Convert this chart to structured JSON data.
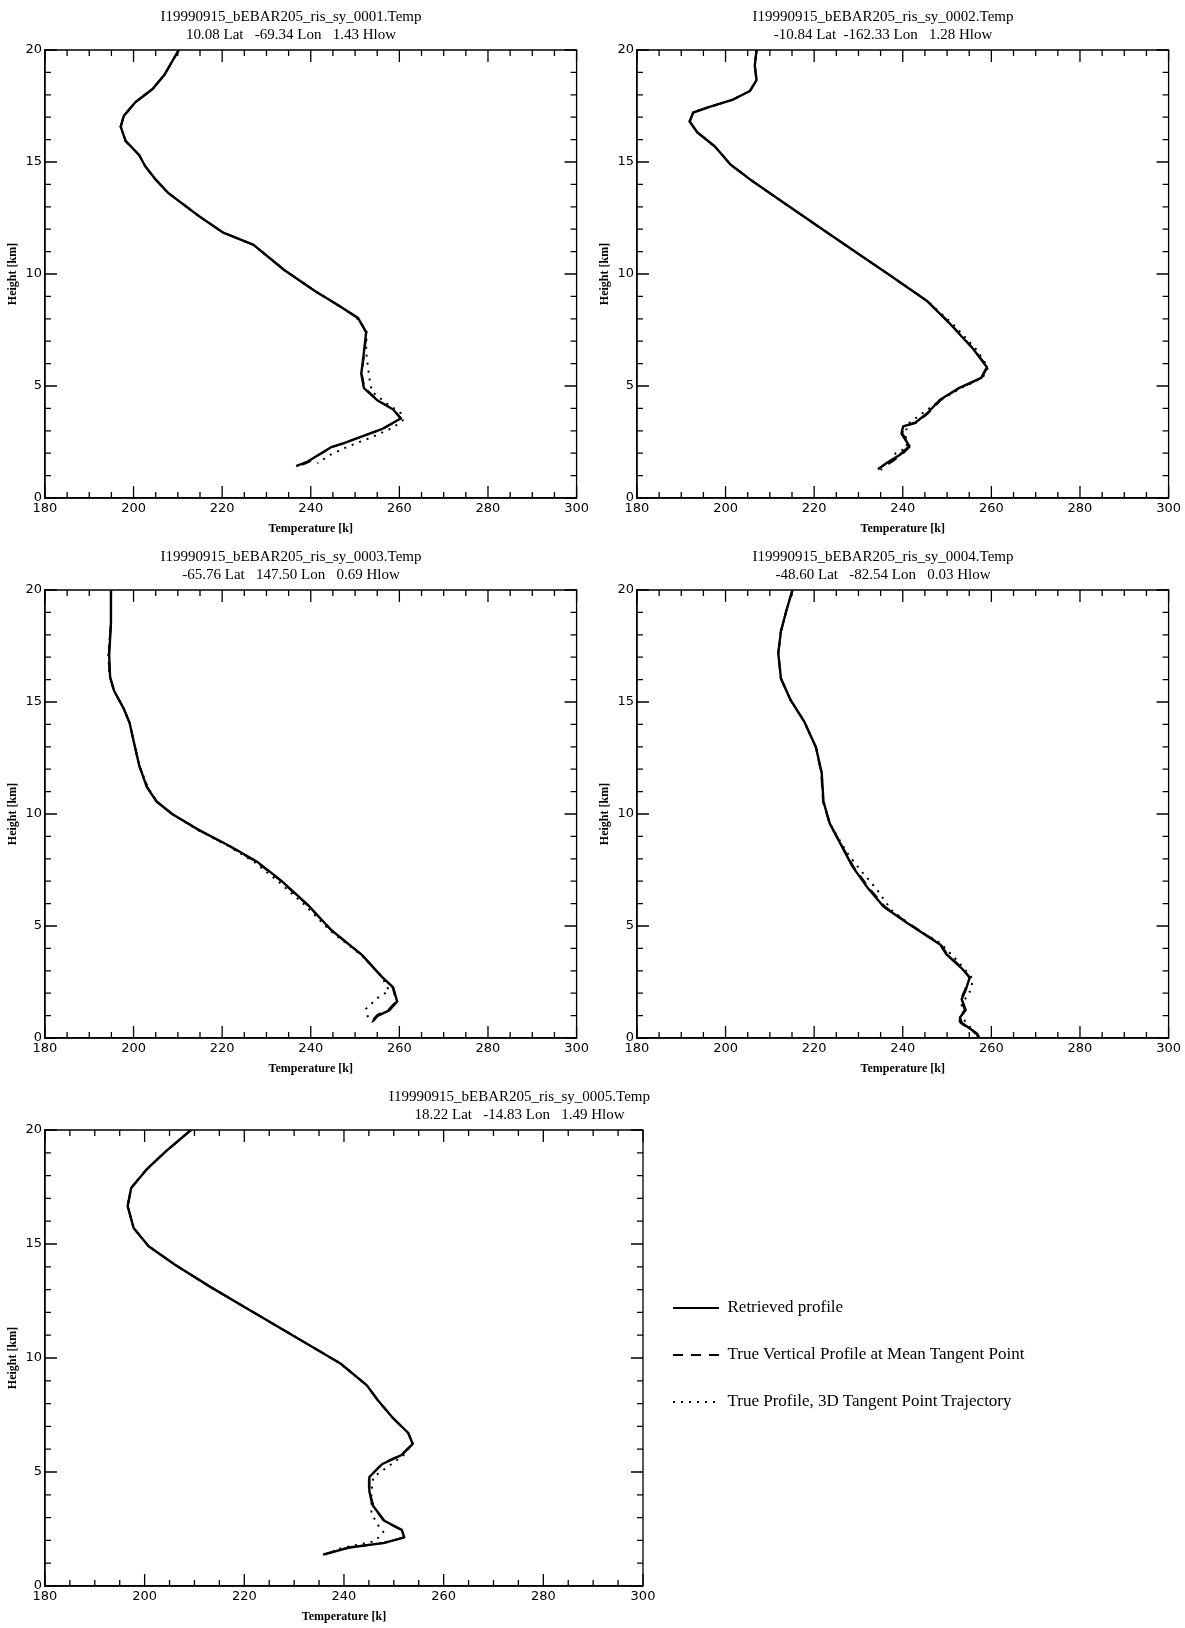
{
  "chart_data": [
    {
      "type": "line",
      "title": "I19990915_bEBAR205_ris_sy_0001.Temp",
      "subtitle": "10.08 Lat   -69.34 Lon   1.43 Hlow",
      "xlabel": "Temperature [k]",
      "ylabel": "Height [km]",
      "xlim": [
        180,
        300
      ],
      "ylim": [
        0,
        20
      ],
      "xticks": [
        180,
        {
          "value": 185,
          "label": null
        },
        {
          "value": 190,
          "label": null
        },
        {
          "value": 195,
          "label": null
        },
        200,
        {
          "value": 205,
          "label": null
        },
        {
          "value": 210,
          "label": null
        },
        {
          "value": 215,
          "label": null
        },
        220,
        {
          "value": 225,
          "label": null
        },
        {
          "value": 230,
          "label": null
        },
        {
          "value": 235,
          "label": null
        },
        240,
        {
          "value": 245,
          "label": null
        },
        {
          "value": 250,
          "label": null
        },
        {
          "value": 255,
          "label": null
        },
        260,
        {
          "value": 265,
          "label": null
        },
        {
          "value": 270,
          "label": null
        },
        {
          "value": 275,
          "label": null
        },
        280,
        {
          "value": 285,
          "label": null
        },
        {
          "value": 290,
          "label": null
        },
        {
          "value": 295,
          "label": null
        },
        300
      ],
      "yticks": [
        0,
        {
          "value": 1,
          "label": null
        },
        {
          "value": 2,
          "label": null
        },
        {
          "value": 3,
          "label": null
        },
        {
          "value": 4,
          "label": null
        },
        5,
        {
          "value": 6,
          "label": null
        },
        {
          "value": 7,
          "label": null
        },
        {
          "value": 8,
          "label": null
        },
        {
          "value": 9,
          "label": null
        },
        10,
        {
          "value": 11,
          "label": null
        },
        {
          "value": 12,
          "label": null
        },
        {
          "value": 13,
          "label": null
        },
        {
          "value": 14,
          "label": null
        },
        15,
        {
          "value": 16,
          "label": null
        },
        {
          "value": 17,
          "label": null
        },
        {
          "value": 18,
          "label": null
        },
        {
          "value": 19,
          "label": null
        },
        20
      ],
      "grid": false,
      "legend": false,
      "marker": "none",
      "series": [
        {
          "color": "#000000",
          "line_style": "solid",
          "x": [
            210.2,
            207.0,
            204.3,
            200.4,
            197.8,
            197.1,
            198.2,
            201.3,
            202.6,
            204.8,
            207.8,
            214.8,
            220.1,
            227.1,
            234.0,
            241.1,
            246.3,
            250.7,
            252.5,
            252.0,
            251.4,
            252.0,
            255.1,
            258.6,
            260.3,
            256.0,
            251.6,
            247.2,
            244.6,
            242.0,
            239.3,
            236.7
          ],
          "values": [
            20,
            18.9,
            18.26,
            17.67,
            17.06,
            16.58,
            15.94,
            15.3,
            14.82,
            14.26,
            13.62,
            12.58,
            11.86,
            11.3,
            10.18,
            9.22,
            8.59,
            8.03,
            7.39,
            6.51,
            5.55,
            4.91,
            4.35,
            3.95,
            3.55,
            3.07,
            2.75,
            2.43,
            2.27,
            1.95,
            1.63,
            1.42
          ]
        },
        {
          "color": "#000000",
          "line_style": "dashed",
          "x": [
            210.2,
            207.0,
            204.3,
            200.4,
            197.8,
            197.1,
            198.2,
            201.3,
            202.6,
            204.8,
            207.8,
            214.8,
            220.1,
            227.1,
            234.0,
            241.1,
            246.3,
            250.7,
            252.6,
            252.1,
            251.5,
            252.1,
            255.2,
            258.7,
            260.4,
            256.1,
            251.6,
            247.0,
            244.6,
            241.8,
            239.5,
            237.1
          ],
          "values": [
            20,
            18.9,
            18.26,
            17.67,
            17.06,
            16.58,
            15.94,
            15.3,
            14.82,
            14.26,
            13.62,
            12.58,
            11.86,
            11.3,
            10.18,
            9.22,
            8.59,
            8.03,
            7.39,
            6.51,
            5.55,
            4.91,
            4.35,
            3.95,
            3.55,
            3.07,
            2.75,
            2.43,
            2.25,
            1.93,
            1.6,
            1.4
          ]
        },
        {
          "color": "#000000",
          "line_style": "dotted",
          "x": [
            210.2,
            207.0,
            204.3,
            200.4,
            197.8,
            197.1,
            198.2,
            201.3,
            202.6,
            204.8,
            207.8,
            214.8,
            220.1,
            227.1,
            234.0,
            241.1,
            246.3,
            250.1,
            252.6,
            252.5,
            253.2,
            253.8,
            256.8,
            260.3,
            260.8,
            258.6,
            254.2,
            248.1,
            244.6,
            241.5
          ],
          "values": [
            20,
            18.9,
            18.26,
            17.67,
            17.06,
            16.58,
            15.94,
            15.3,
            14.82,
            14.26,
            13.62,
            12.58,
            11.86,
            11.3,
            10.18,
            9.22,
            8.59,
            8.1,
            7.47,
            6.51,
            5.39,
            4.75,
            4.27,
            3.79,
            3.47,
            3.15,
            2.75,
            2.27,
            1.95,
            1.55
          ]
        }
      ]
    },
    {
      "type": "line",
      "title": "I19990915_bEBAR205_ris_sy_0002.Temp",
      "subtitle": "-10.84 Lat  -162.33 Lon   1.28 Hlow",
      "xlabel": "Temperature [k]",
      "ylabel": "Height [km]",
      "xlim": [
        180,
        300
      ],
      "ylim": [
        0,
        20
      ],
      "xticks": [
        180,
        {
          "value": 185,
          "label": null
        },
        {
          "value": 190,
          "label": null
        },
        {
          "value": 195,
          "label": null
        },
        200,
        {
          "value": 205,
          "label": null
        },
        {
          "value": 210,
          "label": null
        },
        {
          "value": 215,
          "label": null
        },
        220,
        {
          "value": 225,
          "label": null
        },
        {
          "value": 230,
          "label": null
        },
        {
          "value": 235,
          "label": null
        },
        240,
        {
          "value": 245,
          "label": null
        },
        {
          "value": 250,
          "label": null
        },
        {
          "value": 255,
          "label": null
        },
        260,
        {
          "value": 265,
          "label": null
        },
        {
          "value": 270,
          "label": null
        },
        {
          "value": 275,
          "label": null
        },
        280,
        {
          "value": 285,
          "label": null
        },
        {
          "value": 290,
          "label": null
        },
        {
          "value": 295,
          "label": null
        },
        300
      ],
      "yticks": [
        0,
        {
          "value": 1,
          "label": null
        },
        {
          "value": 2,
          "label": null
        },
        {
          "value": 3,
          "label": null
        },
        {
          "value": 4,
          "label": null
        },
        5,
        {
          "value": 6,
          "label": null
        },
        {
          "value": 7,
          "label": null
        },
        {
          "value": 8,
          "label": null
        },
        {
          "value": 9,
          "label": null
        },
        10,
        {
          "value": 11,
          "label": null
        },
        {
          "value": 12,
          "label": null
        },
        {
          "value": 13,
          "label": null
        },
        {
          "value": 14,
          "label": null
        },
        15,
        {
          "value": 16,
          "label": null
        },
        {
          "value": 17,
          "label": null
        },
        {
          "value": 18,
          "label": null
        },
        {
          "value": 19,
          "label": null
        },
        20
      ],
      "grid": false,
      "legend": false,
      "marker": "none",
      "series": [
        {
          "color": "#000000",
          "line_style": "solid",
          "x": [
            207.0,
            206.6,
            207.0,
            205.5,
            201.5,
            196.2,
            192.7,
            191.9,
            193.6,
            197.6,
            201.1,
            205.9,
            212.9,
            223.5,
            236.6,
            245.4,
            250.7,
            255.9,
            259.0,
            257.7,
            252.4,
            248.5,
            245.4,
            242.8,
            240.1,
            239.7,
            241.5,
            239.3,
            236.6,
            234.4
          ],
          "values": [
            20,
            19.3,
            18.65,
            18.17,
            17.77,
            17.45,
            17.21,
            16.81,
            16.33,
            15.69,
            14.89,
            14.17,
            13.21,
            11.77,
            10.01,
            8.81,
            7.77,
            6.65,
            5.84,
            5.36,
            4.88,
            4.4,
            3.76,
            3.36,
            3.2,
            2.88,
            2.32,
            1.92,
            1.6,
            1.28
          ]
        },
        {
          "color": "#000000",
          "line_style": "dashed",
          "x": [
            207.0,
            206.6,
            207.0,
            205.5,
            201.5,
            196.2,
            192.7,
            191.9,
            193.6,
            197.6,
            201.1,
            205.9,
            212.9,
            223.5,
            236.6,
            245.4,
            250.8,
            256.0,
            259.1,
            257.8,
            252.6,
            248.7,
            245.6,
            243.0,
            240.3,
            239.9,
            241.7,
            239.6,
            237.0,
            235.0
          ],
          "values": [
            20,
            19.3,
            18.65,
            18.17,
            17.77,
            17.45,
            17.21,
            16.81,
            16.33,
            15.69,
            14.89,
            14.17,
            13.21,
            11.77,
            10.01,
            8.81,
            7.77,
            6.65,
            5.84,
            5.36,
            4.88,
            4.4,
            3.76,
            3.36,
            3.2,
            2.88,
            2.32,
            1.9,
            1.55,
            1.25
          ]
        },
        {
          "color": "#000000",
          "line_style": "dotted",
          "x": [
            207.0,
            206.6,
            207.0,
            205.5,
            201.5,
            196.2,
            192.7,
            191.9,
            193.6,
            197.6,
            201.1,
            205.9,
            212.9,
            223.5,
            236.6,
            245.4,
            251.3,
            256.5,
            259.3,
            258.0,
            252.9,
            248.8,
            243.7,
            241.0,
            240.6,
            241.0,
            238.4,
            237.1
          ],
          "values": [
            20,
            19.3,
            18.65,
            18.17,
            17.77,
            17.45,
            17.21,
            16.81,
            16.33,
            15.69,
            14.89,
            14.17,
            13.21,
            11.77,
            10.01,
            8.81,
            7.77,
            6.65,
            5.84,
            5.36,
            4.88,
            4.4,
            3.68,
            3.28,
            2.8,
            2.24,
            2.0,
            1.36
          ]
        }
      ]
    },
    {
      "type": "line",
      "title": "I19990915_bEBAR205_ris_sy_0003.Temp",
      "subtitle": "-65.76 Lat   147.50 Lon   0.69 Hlow",
      "xlabel": "Temperature [k]",
      "ylabel": "Height [km]",
      "xlim": [
        180,
        300
      ],
      "ylim": [
        0,
        20
      ],
      "xticks": [
        180,
        {
          "value": 185,
          "label": null
        },
        {
          "value": 190,
          "label": null
        },
        {
          "value": 195,
          "label": null
        },
        200,
        {
          "value": 205,
          "label": null
        },
        {
          "value": 210,
          "label": null
        },
        {
          "value": 215,
          "label": null
        },
        220,
        {
          "value": 225,
          "label": null
        },
        {
          "value": 230,
          "label": null
        },
        {
          "value": 235,
          "label": null
        },
        240,
        {
          "value": 245,
          "label": null
        },
        {
          "value": 250,
          "label": null
        },
        {
          "value": 255,
          "label": null
        },
        260,
        {
          "value": 265,
          "label": null
        },
        {
          "value": 270,
          "label": null
        },
        {
          "value": 275,
          "label": null
        },
        280,
        {
          "value": 285,
          "label": null
        },
        {
          "value": 290,
          "label": null
        },
        {
          "value": 295,
          "label": null
        },
        300
      ],
      "yticks": [
        0,
        {
          "value": 1,
          "label": null
        },
        {
          "value": 2,
          "label": null
        },
        {
          "value": 3,
          "label": null
        },
        {
          "value": 4,
          "label": null
        },
        5,
        {
          "value": 6,
          "label": null
        },
        {
          "value": 7,
          "label": null
        },
        {
          "value": 8,
          "label": null
        },
        {
          "value": 9,
          "label": null
        },
        10,
        {
          "value": 11,
          "label": null
        },
        {
          "value": 12,
          "label": null
        },
        {
          "value": 13,
          "label": null
        },
        {
          "value": 14,
          "label": null
        },
        15,
        {
          "value": 16,
          "label": null
        },
        {
          "value": 17,
          "label": null
        },
        {
          "value": 18,
          "label": null
        },
        {
          "value": 19,
          "label": null
        },
        20
      ],
      "grid": false,
      "legend": false,
      "marker": "none",
      "series": [
        {
          "color": "#000000",
          "line_style": "solid",
          "x": [
            194.9,
            194.9,
            194.5,
            194.7,
            195.6,
            197.8,
            199.1,
            200.0,
            201.3,
            203.0,
            205.2,
            208.7,
            214.8,
            221.8,
            228.0,
            233.2,
            239.4,
            244.6,
            251.6,
            256.0,
            258.6,
            259.5,
            257.7,
            255.1,
            254.0
          ],
          "values": [
            20,
            18.53,
            17.1,
            16.14,
            15.5,
            14.7,
            14.07,
            13.27,
            12.15,
            11.2,
            10.56,
            10.0,
            9.28,
            8.56,
            7.85,
            7.05,
            5.93,
            4.82,
            3.7,
            2.74,
            2.26,
            1.63,
            1.23,
            0.99,
            0.75
          ]
        },
        {
          "color": "#000000",
          "line_style": "dashed",
          "x": [
            194.9,
            194.9,
            194.4,
            194.6,
            195.6,
            197.8,
            199.1,
            200.0,
            201.3,
            203.1,
            205.2,
            208.7,
            214.8,
            221.7,
            227.8,
            233.0,
            239.3,
            244.6,
            251.6,
            256.0,
            258.5,
            259.3,
            257.5,
            255.0,
            254.0
          ],
          "values": [
            20,
            18.53,
            17.1,
            16.14,
            15.5,
            14.7,
            14.07,
            13.27,
            12.15,
            11.2,
            10.56,
            10.0,
            9.28,
            8.56,
            7.85,
            7.05,
            5.93,
            4.82,
            3.7,
            2.74,
            2.26,
            1.63,
            1.25,
            1.03,
            0.8
          ]
        },
        {
          "color": "#000000",
          "line_style": "dotted",
          "x": [
            194.9,
            194.9,
            194.3,
            194.6,
            195.6,
            197.8,
            199.1,
            200.0,
            201.3,
            203.2,
            205.2,
            208.7,
            214.6,
            221.5,
            227.3,
            232.3,
            238.7,
            244.2,
            251.4,
            256.0,
            257.7,
            255.1,
            252.5,
            252.9,
            254.0
          ],
          "values": [
            20,
            18.53,
            17.1,
            16.14,
            15.5,
            14.7,
            14.07,
            13.27,
            12.15,
            11.2,
            10.56,
            10.0,
            9.28,
            8.56,
            7.85,
            7.05,
            5.93,
            4.82,
            3.7,
            2.74,
            2.11,
            1.79,
            1.31,
            0.91,
            0.7
          ]
        }
      ]
    },
    {
      "type": "line",
      "title": "I19990915_bEBAR205_ris_sy_0004.Temp",
      "subtitle": "-48.60 Lat   -82.54 Lon   0.03 Hlow",
      "xlabel": "Temperature [k]",
      "ylabel": "Height [km]",
      "xlim": [
        180,
        300
      ],
      "ylim": [
        0,
        20
      ],
      "xticks": [
        180,
        {
          "value": 185,
          "label": null
        },
        {
          "value": 190,
          "label": null
        },
        {
          "value": 195,
          "label": null
        },
        200,
        {
          "value": 205,
          "label": null
        },
        {
          "value": 210,
          "label": null
        },
        {
          "value": 215,
          "label": null
        },
        220,
        {
          "value": 225,
          "label": null
        },
        {
          "value": 230,
          "label": null
        },
        {
          "value": 235,
          "label": null
        },
        240,
        {
          "value": 245,
          "label": null
        },
        {
          "value": 250,
          "label": null
        },
        {
          "value": 255,
          "label": null
        },
        260,
        {
          "value": 265,
          "label": null
        },
        {
          "value": 270,
          "label": null
        },
        {
          "value": 275,
          "label": null
        },
        280,
        {
          "value": 285,
          "label": null
        },
        {
          "value": 290,
          "label": null
        },
        {
          "value": 295,
          "label": null
        },
        300
      ],
      "yticks": [
        0,
        {
          "value": 1,
          "label": null
        },
        {
          "value": 2,
          "label": null
        },
        {
          "value": 3,
          "label": null
        },
        {
          "value": 4,
          "label": null
        },
        5,
        {
          "value": 6,
          "label": null
        },
        {
          "value": 7,
          "label": null
        },
        {
          "value": 8,
          "label": null
        },
        {
          "value": 9,
          "label": null
        },
        10,
        {
          "value": 11,
          "label": null
        },
        {
          "value": 12,
          "label": null
        },
        {
          "value": 13,
          "label": null
        },
        {
          "value": 14,
          "label": null
        },
        15,
        {
          "value": 16,
          "label": null
        },
        {
          "value": 17,
          "label": null
        },
        {
          "value": 18,
          "label": null
        },
        {
          "value": 19,
          "label": null
        },
        20
      ],
      "grid": false,
      "legend": false,
      "marker": "none",
      "series": [
        {
          "color": "#000000",
          "line_style": "solid",
          "x": [
            215.1,
            213.8,
            212.5,
            211.9,
            212.5,
            214.7,
            217.8,
            220.4,
            221.7,
            222.1,
            223.5,
            226.1,
            228.7,
            232.2,
            235.7,
            241.0,
            245.4,
            248.5,
            249.8,
            253.3,
            255.1,
            254.2,
            253.3,
            254.2,
            252.9,
            253.3,
            256.8,
            257.3
          ],
          "values": [
            20,
            19.13,
            18.16,
            17.18,
            16.05,
            15.08,
            14.11,
            12.98,
            11.84,
            10.55,
            9.58,
            8.61,
            7.64,
            6.67,
            5.86,
            5.13,
            4.56,
            4.16,
            3.75,
            3.11,
            2.7,
            2.14,
            1.73,
            1.25,
            0.92,
            0.68,
            0.19,
            0
          ]
        },
        {
          "color": "#000000",
          "line_style": "dashed",
          "x": [
            215.1,
            213.8,
            212.5,
            211.9,
            212.5,
            214.7,
            217.8,
            220.4,
            221.6,
            222.0,
            223.5,
            226.2,
            228.9,
            232.5,
            236.0,
            241.2,
            245.6,
            248.7,
            250.0,
            253.5,
            255.1,
            254.0,
            253.1,
            254.0,
            252.6,
            253.0,
            256.6,
            257.1
          ],
          "values": [
            20,
            19.13,
            18.16,
            17.18,
            16.05,
            15.08,
            14.11,
            12.98,
            11.84,
            10.55,
            9.58,
            8.61,
            7.64,
            6.67,
            5.86,
            5.13,
            4.56,
            4.16,
            3.75,
            3.11,
            2.7,
            2.14,
            1.73,
            1.25,
            0.92,
            0.68,
            0.19,
            0
          ]
        },
        {
          "color": "#000000",
          "line_style": "dotted",
          "x": [
            215.1,
            213.8,
            212.5,
            211.9,
            212.5,
            214.7,
            217.8,
            220.4,
            221.7,
            222.1,
            223.5,
            227.4,
            230.5,
            234.0,
            237.5,
            242.8,
            248.5,
            252.4,
            255.9,
            255.1,
            253.3,
            253.7,
            256.8
          ],
          "values": [
            20,
            19.13,
            18.16,
            17.18,
            16.05,
            15.08,
            14.11,
            12.98,
            11.84,
            10.55,
            9.58,
            8.28,
            7.48,
            6.67,
            5.7,
            4.89,
            4.24,
            3.43,
            2.62,
            2.06,
            1.49,
            0.84,
            0.11
          ]
        }
      ]
    },
    {
      "type": "line",
      "title": "I19990915_bEBAR205_ris_sy_0005.Temp",
      "subtitle": "18.22 Lat   -14.83 Lon   1.49 Hlow",
      "xlabel": "Temperature [k]",
      "ylabel": "Height [km]",
      "xlim": [
        180,
        300
      ],
      "ylim": [
        0,
        20
      ],
      "xticks": [
        180,
        {
          "value": 185,
          "label": null
        },
        {
          "value": 190,
          "label": null
        },
        {
          "value": 195,
          "label": null
        },
        200,
        {
          "value": 205,
          "label": null
        },
        {
          "value": 210,
          "label": null
        },
        {
          "value": 215,
          "label": null
        },
        220,
        {
          "value": 225,
          "label": null
        },
        {
          "value": 230,
          "label": null
        },
        {
          "value": 235,
          "label": null
        },
        240,
        {
          "value": 245,
          "label": null
        },
        {
          "value": 250,
          "label": null
        },
        {
          "value": 255,
          "label": null
        },
        260,
        {
          "value": 265,
          "label": null
        },
        {
          "value": 270,
          "label": null
        },
        {
          "value": 275,
          "label": null
        },
        280,
        {
          "value": 285,
          "label": null
        },
        {
          "value": 290,
          "label": null
        },
        {
          "value": 295,
          "label": null
        },
        300
      ],
      "yticks": [
        0,
        {
          "value": 1,
          "label": null
        },
        {
          "value": 2,
          "label": null
        },
        {
          "value": 3,
          "label": null
        },
        {
          "value": 4,
          "label": null
        },
        5,
        {
          "value": 6,
          "label": null
        },
        {
          "value": 7,
          "label": null
        },
        {
          "value": 8,
          "label": null
        },
        {
          "value": 9,
          "label": null
        },
        10,
        {
          "value": 11,
          "label": null
        },
        {
          "value": 12,
          "label": null
        },
        {
          "value": 13,
          "label": null
        },
        {
          "value": 14,
          "label": null
        },
        15,
        {
          "value": 16,
          "label": null
        },
        {
          "value": 17,
          "label": null
        },
        {
          "value": 18,
          "label": null
        },
        {
          "value": 19,
          "label": null
        },
        20
      ],
      "grid": false,
      "legend": "right",
      "marker": "none",
      "series": [
        {
          "name": "Retrieved profile",
          "color": "#000000",
          "line_style": "solid",
          "x": [
            209.3,
            204.3,
            200.4,
            197.3,
            196.6,
            197.8,
            200.8,
            206.1,
            213.1,
            221.8,
            230.6,
            239.3,
            244.6,
            246.8,
            249.9,
            252.9,
            253.8,
            251.6,
            247.7,
            245.1,
            245.1,
            245.9,
            248.1,
            251.6,
            252.1,
            248.1,
            241.1,
            235.8
          ],
          "values": [
            20,
            19.07,
            18.27,
            17.46,
            16.66,
            15.7,
            14.9,
            14.09,
            13.13,
            12.01,
            10.88,
            9.76,
            8.8,
            8.15,
            7.35,
            6.71,
            6.23,
            5.75,
            5.35,
            4.78,
            4.14,
            3.5,
            2.86,
            2.46,
            2.13,
            1.89,
            1.69,
            1.38
          ]
        },
        {
          "name": "True Vertical Profile at Mean Tangent Point",
          "color": "#000000",
          "line_style": "dashed",
          "x": [
            209.3,
            204.3,
            200.4,
            197.3,
            196.6,
            197.8,
            200.8,
            206.1,
            213.1,
            221.8,
            230.6,
            239.3,
            244.6,
            246.8,
            249.9,
            252.9,
            253.8,
            251.5,
            247.6,
            245.0,
            245.0,
            245.8,
            248.0,
            251.5,
            252.0,
            248.0,
            241.0,
            235.9
          ],
          "values": [
            20,
            19.07,
            18.27,
            17.46,
            16.66,
            15.7,
            14.9,
            14.09,
            13.13,
            12.01,
            10.88,
            9.76,
            8.8,
            8.15,
            7.35,
            6.71,
            6.23,
            5.75,
            5.35,
            4.78,
            4.14,
            3.5,
            2.86,
            2.46,
            2.13,
            1.89,
            1.69,
            1.38
          ]
        },
        {
          "name": "True Profile, 3D Tangent Point Trajectory",
          "color": "#000000",
          "line_style": "dotted",
          "x": [
            209.3,
            204.3,
            200.4,
            197.3,
            196.6,
            197.8,
            200.8,
            206.1,
            213.1,
            221.8,
            230.6,
            239.3,
            244.6,
            246.8,
            249.9,
            252.9,
            253.8,
            252.0,
            249.0,
            245.9,
            245.5,
            245.5,
            247.2,
            247.9,
            246.3,
            239.3,
            236.3
          ],
          "values": [
            20,
            19.07,
            18.27,
            17.46,
            16.66,
            15.7,
            14.9,
            14.09,
            13.13,
            12.01,
            10.88,
            9.76,
            8.8,
            8.15,
            7.35,
            6.71,
            6.23,
            5.75,
            5.26,
            4.78,
            4.14,
            3.18,
            2.54,
            2.38,
            1.97,
            1.65,
            1.38
          ]
        }
      ]
    }
  ]
}
